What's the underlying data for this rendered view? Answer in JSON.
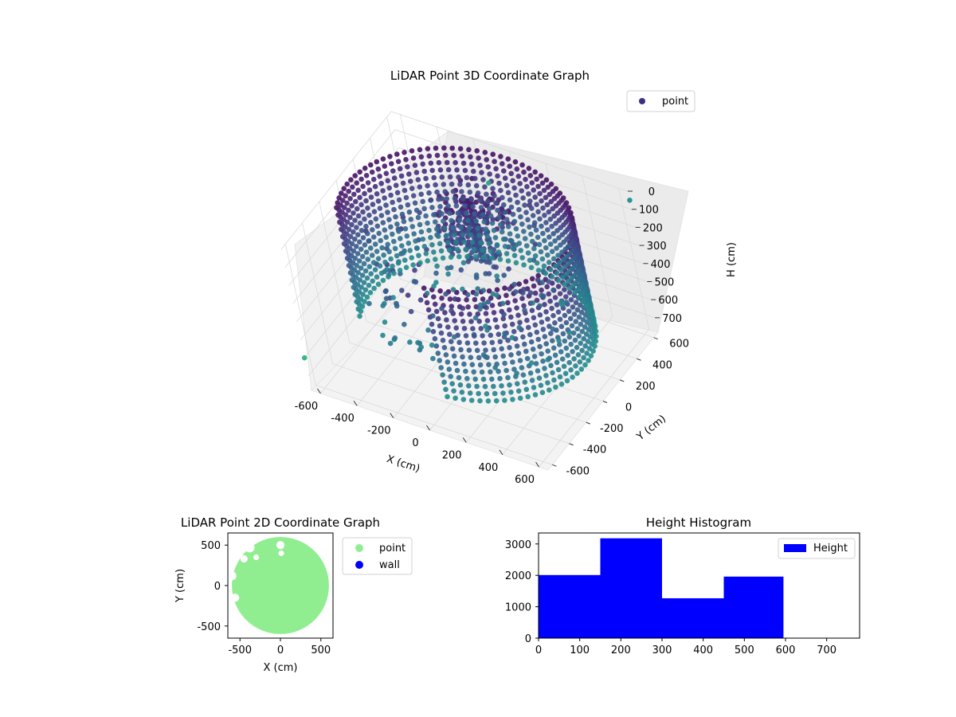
{
  "chart_data": [
    {
      "type": "scatter3d",
      "title": "LiDAR Point 3D Coordinate Graph",
      "xlabel": "X (cm)",
      "ylabel": "Y (cm)",
      "zlabel": "H (cm)",
      "xticks": [
        -600,
        -400,
        -200,
        0,
        200,
        400,
        600
      ],
      "yticks": [
        -600,
        -400,
        -200,
        0,
        200,
        400,
        600
      ],
      "zticks": [
        0,
        100,
        200,
        300,
        400,
        500,
        600,
        700
      ],
      "xlim": [
        -650,
        650
      ],
      "ylim": [
        -650,
        650
      ],
      "zlim": [
        0,
        780
      ],
      "zinverted": true,
      "grid": true,
      "legend": {
        "position": "upper right",
        "entries": [
          "point"
        ]
      },
      "colormap": "viridis",
      "colors": {
        "marker": "#46317e",
        "legend_marker": "#3e2f7f"
      },
      "wall": {
        "radius": 590,
        "start_angle_deg": -80,
        "end_angle_deg": 200,
        "h_min": 0,
        "h_max": 600
      },
      "interior_cluster": {
        "x": -10,
        "y": 190,
        "h_min": 0,
        "h_max": 300
      },
      "outliers": [
        {
          "x": -650,
          "y": -650,
          "h": 600
        },
        {
          "x": 650,
          "y": 650,
          "h": 50
        },
        {
          "x": -100,
          "y": 550,
          "h": 150
        }
      ]
    },
    {
      "type": "scatter",
      "title": "LiDAR Point 2D Coordinate Graph",
      "xlabel": "X (cm)",
      "ylabel": "Y (cm)",
      "xticks": [
        -500,
        0,
        500
      ],
      "yticks": [
        -500,
        0,
        500
      ],
      "xlim": [
        -650,
        650
      ],
      "ylim": [
        -650,
        650
      ],
      "legend": {
        "position": "outside right",
        "entries": [
          "point",
          "wall"
        ]
      },
      "series": [
        {
          "name": "point",
          "color": "#90ee90",
          "shape": "disk",
          "center": [
            0,
            0
          ],
          "radius": 600
        },
        {
          "name": "wall",
          "color": "#0000ff"
        }
      ]
    },
    {
      "type": "histogram",
      "title": "Height Histogram",
      "xticks": [
        0,
        100,
        200,
        300,
        400,
        500,
        600,
        700
      ],
      "yticks": [
        0,
        1000,
        2000,
        3000
      ],
      "xlim": [
        0,
        780
      ],
      "ylim": [
        0,
        3350
      ],
      "color": "#0000ff",
      "legend": {
        "position": "upper right",
        "entries": [
          "Height"
        ]
      },
      "bins": [
        {
          "x0": 0,
          "x1": 150,
          "count": 2010
        },
        {
          "x0": 150,
          "x1": 300,
          "count": 3180
        },
        {
          "x0": 300,
          "x1": 450,
          "count": 1270
        },
        {
          "x0": 450,
          "x1": 595,
          "count": 1960
        }
      ]
    }
  ]
}
